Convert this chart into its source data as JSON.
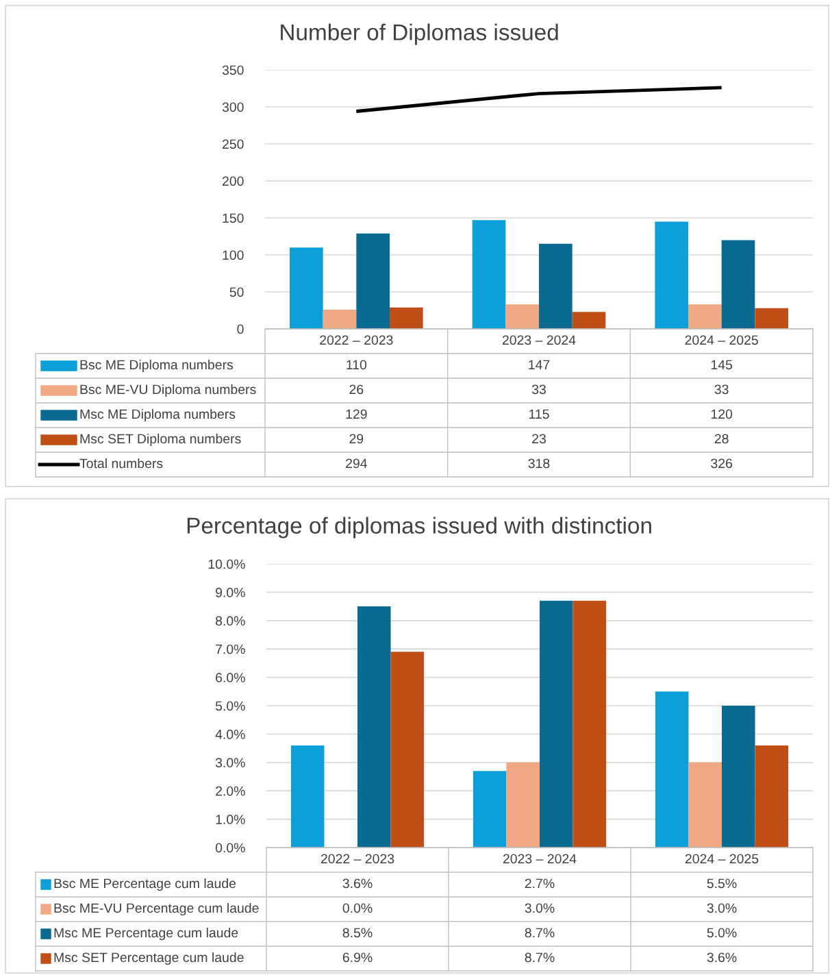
{
  "chart_data": [
    {
      "type": "bar",
      "title": "Number of Diplomas issued",
      "categories": [
        "2022 – 2023",
        "2023 – 2024",
        "2024 – 2025"
      ],
      "series": [
        {
          "name": "Bsc ME Diploma numbers",
          "color": "#0e9fd8",
          "values": [
            110,
            147,
            145
          ]
        },
        {
          "name": "Bsc ME-VU Diploma numbers",
          "color": "#f0a984",
          "values": [
            26,
            33,
            33
          ]
        },
        {
          "name": "Msc ME Diploma numbers",
          "color": "#0a6a90",
          "values": [
            129,
            115,
            120
          ]
        },
        {
          "name": "Msc SET Diploma numbers",
          "color": "#c04f17",
          "values": [
            29,
            23,
            28
          ]
        },
        {
          "name": "Total numbers",
          "type": "line",
          "color": "#000000",
          "values": [
            294,
            318,
            326
          ]
        }
      ],
      "ylim": [
        0,
        350
      ],
      "yticks": [
        0,
        50,
        100,
        150,
        200,
        250,
        300,
        350
      ],
      "grid": "y",
      "data_labels": true,
      "legend": "bottom",
      "marker": "none"
    },
    {
      "type": "bar",
      "title": "Percentage of diplomas issued with distinction",
      "categories": [
        "2022 – 2023",
        "2023 – 2024",
        "2024 – 2025"
      ],
      "series": [
        {
          "name": "Bsc ME Percentage cum laude",
          "color": "#0e9fd8",
          "values": [
            3.6,
            2.7,
            5.5
          ],
          "value_labels": [
            "3.6%",
            "2.7%",
            "5.5%"
          ]
        },
        {
          "name": "Bsc ME-VU Percentage cum laude",
          "color": "#f0a984",
          "values": [
            0.0,
            3.0,
            3.0
          ],
          "value_labels": [
            "0.0%",
            "3.0%",
            "3.0%"
          ]
        },
        {
          "name": "Msc ME Percentage cum laude",
          "color": "#0a6a90",
          "values": [
            8.5,
            8.7,
            5.0
          ],
          "value_labels": [
            "8.5%",
            "8.7%",
            "5.0%"
          ]
        },
        {
          "name": "Msc SET Percentage cum laude",
          "color": "#c04f17",
          "values": [
            6.9,
            8.7,
            3.6
          ],
          "value_labels": [
            "6.9%",
            "8.7%",
            "3.6%"
          ]
        }
      ],
      "ylim": [
        0,
        10
      ],
      "yticks": [
        {
          "value": 0,
          "label": "0.0%"
        },
        {
          "value": 1,
          "label": "1.0%"
        },
        {
          "value": 2,
          "label": "2.0%"
        },
        {
          "value": 3,
          "label": "3.0%"
        },
        {
          "value": 4,
          "label": "4.0%"
        },
        {
          "value": 5,
          "label": "5.0%"
        },
        {
          "value": 6,
          "label": "6.0%"
        },
        {
          "value": 7,
          "label": "7.0%"
        },
        {
          "value": 8,
          "label": "8.0%"
        },
        {
          "value": 9,
          "label": "9.0%"
        },
        {
          "value": 10,
          "label": "10.0%"
        }
      ],
      "grid": "y",
      "legend": "bottom"
    }
  ]
}
